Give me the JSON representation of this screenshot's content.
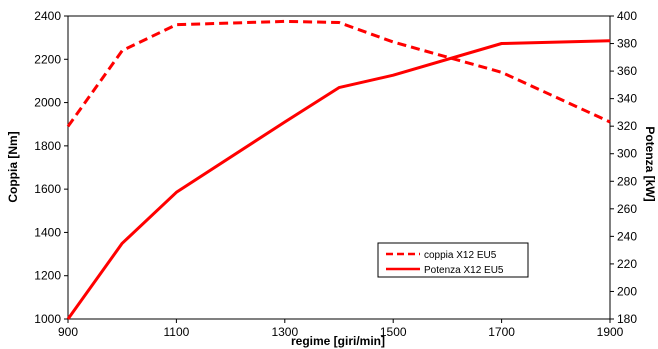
{
  "chart_data": {
    "type": "line",
    "xlabel": "regime [giri/min]",
    "ylabel_left": "Coppia [Nm]",
    "ylabel_right": "Potenza [kW]",
    "xlim": [
      900,
      1900
    ],
    "xticks": [
      900,
      1100,
      1300,
      1500,
      1700,
      1900
    ],
    "ylim_left": [
      1000,
      2400
    ],
    "yticks_left": [
      1000,
      1200,
      1400,
      1600,
      1800,
      2000,
      2200,
      2400
    ],
    "ylim_right": [
      180,
      400
    ],
    "yticks_right": [
      180,
      200,
      220,
      240,
      260,
      280,
      300,
      320,
      340,
      360,
      380,
      400
    ],
    "grid": false,
    "legend_position": "bottom-right",
    "color": "#ff0000",
    "series": [
      {
        "name": "coppia X12 EU5",
        "axis": "left",
        "style": "dashed",
        "x": [
          900,
          1000,
          1100,
          1300,
          1400,
          1500,
          1700,
          1900
        ],
        "values": [
          1890,
          2240,
          2360,
          2375,
          2370,
          2280,
          2140,
          1910
        ]
      },
      {
        "name": "Potenza X12 EU5",
        "axis": "right",
        "style": "solid",
        "x": [
          900,
          1000,
          1100,
          1300,
          1400,
          1500,
          1700,
          1900
        ],
        "values": [
          180,
          235,
          272,
          323,
          348,
          357,
          380,
          382
        ]
      }
    ]
  }
}
